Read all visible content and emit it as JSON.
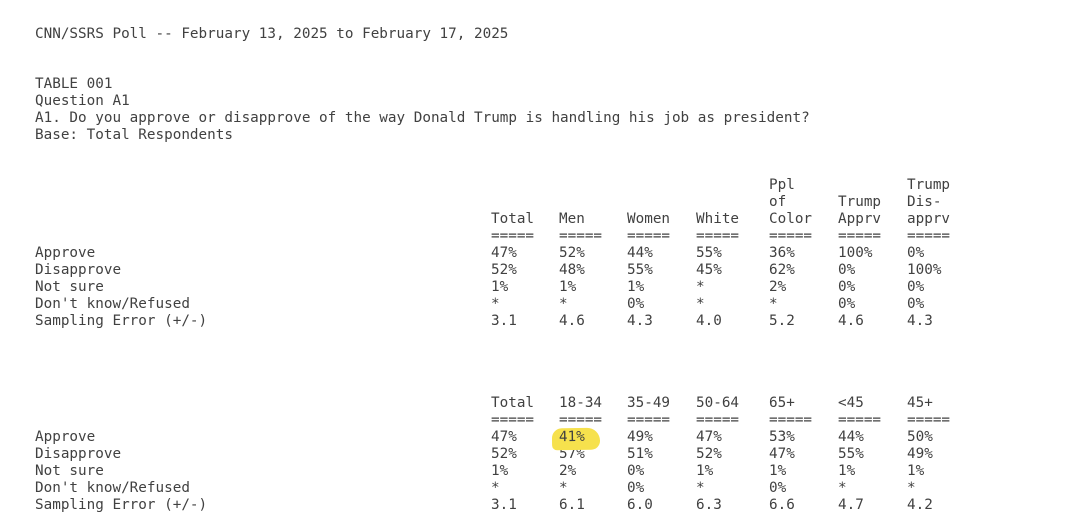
{
  "meta": {
    "poll_title": "CNN/SSRS Poll -- February 13, 2025 to February 17, 2025",
    "table_label": "TABLE 001",
    "question_label": "Question A1",
    "question_text": "A1. Do you approve or disapprove of the way Donald Trump is handling his job as president?",
    "base_text": "Base: Total Respondents",
    "col_rule": "=====",
    "highlight_color": "#f6e14d",
    "text_color": "#414141",
    "paper_color": "#ffffff"
  },
  "table1": {
    "headers": [
      {
        "lines": [
          "Total"
        ]
      },
      {
        "lines": [
          "Men"
        ]
      },
      {
        "lines": [
          "Women"
        ]
      },
      {
        "lines": [
          "White"
        ]
      },
      {
        "lines": [
          "Ppl",
          "of",
          "Color"
        ]
      },
      {
        "lines": [
          "Trump",
          "Apprv"
        ]
      },
      {
        "lines": [
          "Trump",
          "Dis-",
          "apprv"
        ]
      }
    ],
    "rows": [
      {
        "label": "Approve",
        "values": [
          "47%",
          "52%",
          "44%",
          "55%",
          "36%",
          "100%",
          "0%"
        ]
      },
      {
        "label": "Disapprove",
        "values": [
          "52%",
          "48%",
          "55%",
          "45%",
          "62%",
          "0%",
          "100%"
        ]
      },
      {
        "label": "Not sure",
        "values": [
          "1%",
          "1%",
          "1%",
          "*",
          "2%",
          "0%",
          "0%"
        ]
      },
      {
        "label": "Don't know/Refused",
        "values": [
          "*",
          "*",
          "0%",
          "*",
          "*",
          "0%",
          "0%"
        ]
      },
      {
        "label": "Sampling Error (+/-)",
        "values": [
          "3.1",
          "4.6",
          "4.3",
          "4.0",
          "5.2",
          "4.6",
          "4.3"
        ]
      }
    ]
  },
  "table2": {
    "headers": [
      {
        "lines": [
          "Total"
        ]
      },
      {
        "lines": [
          "18-34"
        ]
      },
      {
        "lines": [
          "35-49"
        ]
      },
      {
        "lines": [
          "50-64"
        ]
      },
      {
        "lines": [
          "65+"
        ]
      },
      {
        "lines": [
          "<45"
        ]
      },
      {
        "lines": [
          "45+"
        ]
      }
    ],
    "rows": [
      {
        "label": "Approve",
        "values": [
          "47%",
          "41%",
          "49%",
          "47%",
          "53%",
          "44%",
          "50%"
        ]
      },
      {
        "label": "Disapprove",
        "values": [
          "52%",
          "57%",
          "51%",
          "52%",
          "47%",
          "55%",
          "49%"
        ]
      },
      {
        "label": "Not sure",
        "values": [
          "1%",
          "2%",
          "0%",
          "1%",
          "1%",
          "1%",
          "1%"
        ]
      },
      {
        "label": "Don't know/Refused",
        "values": [
          "*",
          "*",
          "0%",
          "*",
          "0%",
          "*",
          "*"
        ]
      },
      {
        "label": "Sampling Error (+/-)",
        "values": [
          "3.1",
          "6.1",
          "6.0",
          "6.3",
          "6.6",
          "4.7",
          "4.2"
        ]
      }
    ],
    "highlight": {
      "row": 0,
      "col": 1,
      "value": "41%"
    }
  }
}
